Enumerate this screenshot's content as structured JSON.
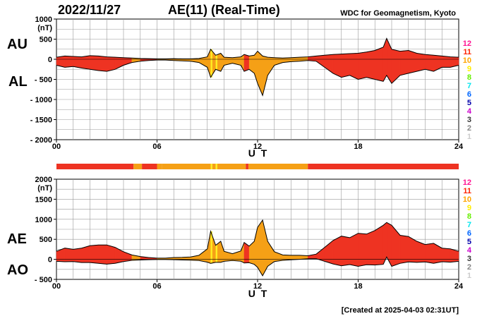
{
  "header": {
    "date": "2022/11/27",
    "title": "AE(11) (Real-Time)",
    "institution": "WDC for Geomagnetism, Kyoto"
  },
  "footer": {
    "created": "[Created at 2025-04-03 02:31UT]"
  },
  "colors": {
    "high_activity": "#ee3322",
    "moderate_activity": "#f5a016",
    "yellow_marks": "#ffee22",
    "outline": "#000000",
    "grid": "#999999"
  },
  "station_count_legend": [
    {
      "label": "12",
      "color": "#ff1493"
    },
    {
      "label": "11",
      "color": "#ff2200"
    },
    {
      "label": "10",
      "color": "#ffa500"
    },
    {
      "label": "9",
      "color": "#ffee00"
    },
    {
      "label": "8",
      "color": "#66ee00"
    },
    {
      "label": "7",
      "color": "#00e5ee"
    },
    {
      "label": "6",
      "color": "#0066ff"
    },
    {
      "label": "5",
      "color": "#0000aa"
    },
    {
      "label": "4",
      "color": "#cc00cc"
    },
    {
      "label": "3",
      "color": "#333333"
    },
    {
      "label": "2",
      "color": "#888888"
    },
    {
      "label": "1",
      "color": "#cccccc"
    }
  ],
  "station_count_bar": [
    {
      "from": 0.0,
      "to": 4.6,
      "count": 11
    },
    {
      "from": 4.6,
      "to": 5.1,
      "count": 10
    },
    {
      "from": 5.1,
      "to": 6.0,
      "count": 11
    },
    {
      "from": 6.0,
      "to": 6.3,
      "count": 10
    },
    {
      "from": 6.3,
      "to": 9.2,
      "count": 10
    },
    {
      "from": 9.2,
      "to": 9.3,
      "count": 9
    },
    {
      "from": 9.3,
      "to": 9.5,
      "count": 10
    },
    {
      "from": 9.5,
      "to": 9.6,
      "count": 9
    },
    {
      "from": 9.6,
      "to": 11.3,
      "count": 10
    },
    {
      "from": 11.3,
      "to": 11.45,
      "count": 11
    },
    {
      "from": 11.45,
      "to": 15.0,
      "count": 10
    },
    {
      "from": 15.0,
      "to": 24.0,
      "count": 11
    }
  ],
  "chart_data": [
    {
      "type": "area",
      "side_labels": [
        "AU",
        "AL"
      ],
      "ylabel": "(nT)",
      "ylim": [
        -2000,
        1000
      ],
      "y_ticks": [
        "1000",
        "500",
        "0",
        "- 500",
        "- 1000",
        "- 1500",
        "- 2000"
      ],
      "y_tick_values": [
        1000,
        500,
        0,
        -500,
        -1000,
        -1500,
        -2000
      ],
      "xlabel": "U T",
      "xlim": [
        0,
        24
      ],
      "x_ticks": [
        "00",
        "06",
        "12",
        "18",
        "24"
      ],
      "x_tick_values": [
        0,
        6,
        12,
        18,
        24
      ],
      "grid": true,
      "series": [
        {
          "key": "AU",
          "x": [
            0,
            0.5,
            1,
            1.5,
            2,
            2.5,
            3,
            3.5,
            4,
            4.5,
            5,
            5.5,
            6,
            6.5,
            7,
            7.5,
            8,
            8.5,
            9,
            9.2,
            9.5,
            9.8,
            10,
            10.5,
            11,
            11.2,
            11.5,
            11.8,
            12,
            12.3,
            12.6,
            13,
            13.5,
            14,
            14.5,
            15,
            15.5,
            16,
            16.5,
            17,
            17.5,
            18,
            18.5,
            19,
            19.5,
            19.7,
            20,
            20.5,
            21,
            21.5,
            22,
            22.5,
            23,
            23.5,
            24
          ],
          "values": [
            50,
            80,
            70,
            60,
            90,
            80,
            60,
            50,
            40,
            30,
            20,
            15,
            10,
            10,
            15,
            10,
            10,
            20,
            60,
            250,
            100,
            150,
            50,
            40,
            60,
            120,
            80,
            100,
            200,
            80,
            50,
            40,
            30,
            40,
            50,
            60,
            80,
            100,
            120,
            130,
            140,
            150,
            180,
            220,
            300,
            520,
            250,
            200,
            220,
            150,
            120,
            100,
            80,
            60,
            50
          ]
        },
        {
          "key": "AL",
          "x": [
            0,
            0.5,
            1,
            1.5,
            2,
            2.5,
            3,
            3.5,
            4,
            4.5,
            5,
            5.5,
            6,
            6.5,
            7,
            7.5,
            8,
            8.5,
            9,
            9.2,
            9.5,
            9.8,
            10,
            10.5,
            11,
            11.2,
            11.5,
            11.8,
            12,
            12.3,
            12.6,
            13,
            13.5,
            14,
            14.5,
            15,
            15.5,
            16,
            16.5,
            17,
            17.5,
            18,
            18.5,
            19,
            19.5,
            19.7,
            20,
            20.5,
            21,
            21.5,
            22,
            22.5,
            23,
            23.5,
            24
          ],
          "values": [
            -150,
            -200,
            -180,
            -220,
            -250,
            -280,
            -300,
            -250,
            -150,
            -80,
            -50,
            -30,
            -20,
            -20,
            -30,
            -40,
            -50,
            -80,
            -200,
            -450,
            -250,
            -300,
            -150,
            -100,
            -150,
            -300,
            -250,
            -350,
            -600,
            -900,
            -400,
            -150,
            -80,
            -60,
            -50,
            -30,
            -50,
            -200,
            -350,
            -450,
            -400,
            -500,
            -450,
            -500,
            -550,
            -400,
            -600,
            -400,
            -350,
            -300,
            -250,
            -300,
            -200,
            -200,
            -150
          ]
        }
      ]
    },
    {
      "type": "area",
      "side_labels": [
        "AE",
        "AO"
      ],
      "ylabel": "(nT)",
      "ylim": [
        -500,
        2000
      ],
      "y_ticks": [
        "2000",
        "1500",
        "1000",
        "500",
        "0",
        "- 500"
      ],
      "y_tick_values": [
        2000,
        1500,
        1000,
        500,
        0,
        -500
      ],
      "xlabel": "U T",
      "xlim": [
        0,
        24
      ],
      "x_ticks": [
        "00",
        "06",
        "12",
        "18",
        "24"
      ],
      "x_tick_values": [
        0,
        6,
        12,
        18,
        24
      ],
      "grid": true,
      "series": [
        {
          "key": "AE",
          "x": [
            0,
            0.5,
            1,
            1.5,
            2,
            2.5,
            3,
            3.5,
            4,
            4.5,
            5,
            5.5,
            6,
            6.5,
            7,
            7.5,
            8,
            8.5,
            9,
            9.2,
            9.5,
            9.8,
            10,
            10.5,
            11,
            11.2,
            11.5,
            11.8,
            12,
            12.3,
            12.6,
            13,
            13.5,
            14,
            14.5,
            15,
            15.5,
            16,
            16.5,
            17,
            17.5,
            18,
            18.5,
            19,
            19.5,
            19.7,
            20,
            20.5,
            21,
            21.5,
            22,
            22.5,
            23,
            23.5,
            24
          ],
          "values": [
            200,
            280,
            250,
            280,
            340,
            360,
            360,
            300,
            190,
            110,
            70,
            45,
            30,
            30,
            45,
            50,
            60,
            100,
            260,
            700,
            350,
            450,
            200,
            140,
            210,
            420,
            330,
            450,
            800,
            980,
            450,
            190,
            110,
            100,
            100,
            90,
            130,
            300,
            470,
            580,
            540,
            650,
            630,
            720,
            850,
            920,
            850,
            600,
            570,
            450,
            370,
            400,
            280,
            260,
            200
          ]
        },
        {
          "key": "AO",
          "x": [
            0,
            0.5,
            1,
            1.5,
            2,
            2.5,
            3,
            3.5,
            4,
            4.5,
            5,
            5.5,
            6,
            6.5,
            7,
            7.5,
            8,
            8.5,
            9,
            9.2,
            9.5,
            9.8,
            10,
            10.5,
            11,
            11.2,
            11.5,
            11.8,
            12,
            12.3,
            12.6,
            13,
            13.5,
            14,
            14.5,
            15,
            15.5,
            16,
            16.5,
            17,
            17.5,
            18,
            18.5,
            19,
            19.5,
            19.7,
            20,
            20.5,
            21,
            21.5,
            22,
            22.5,
            23,
            23.5,
            24
          ],
          "values": [
            -50,
            -60,
            -55,
            -80,
            -80,
            -100,
            -120,
            -100,
            -55,
            -25,
            -15,
            -8,
            -5,
            -5,
            -8,
            -15,
            -20,
            -30,
            -70,
            -100,
            -75,
            -75,
            -50,
            -30,
            -45,
            -90,
            -85,
            -125,
            -200,
            -410,
            -175,
            -55,
            -25,
            -10,
            0,
            15,
            15,
            -50,
            -115,
            -160,
            -130,
            -175,
            -135,
            -140,
            -125,
            60,
            -175,
            -100,
            -65,
            -75,
            -65,
            -100,
            -60,
            -70,
            -50
          ]
        }
      ]
    }
  ]
}
